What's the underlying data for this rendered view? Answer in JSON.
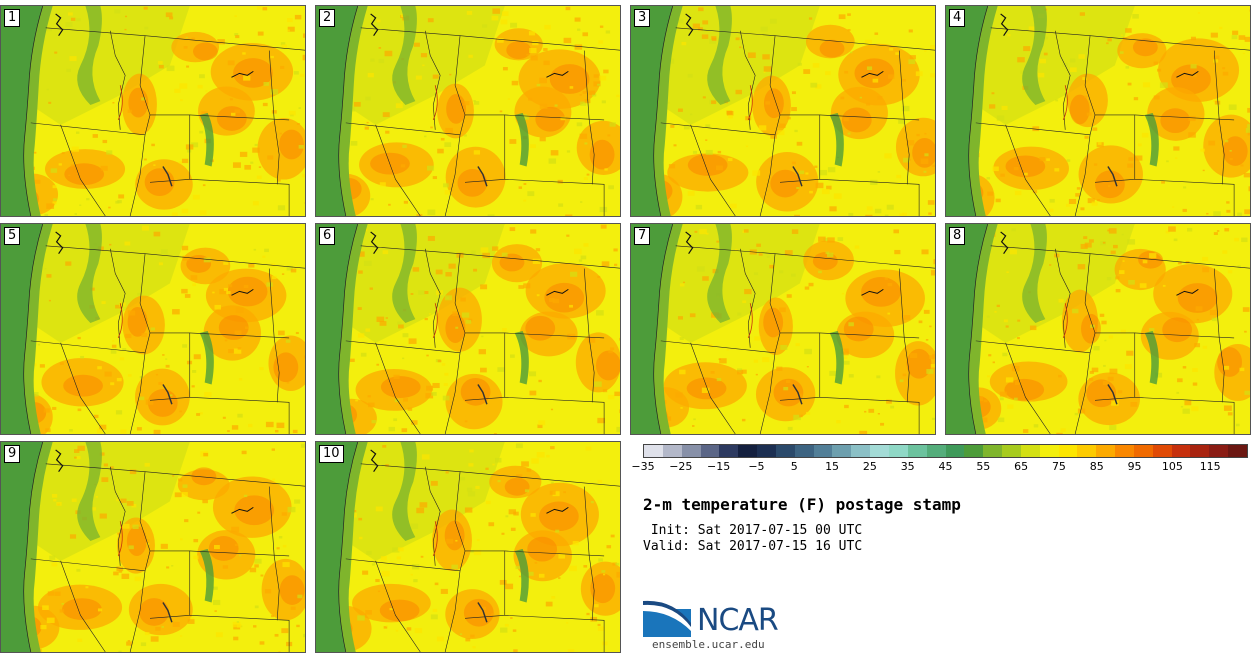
{
  "panels": [
    {
      "label": "1"
    },
    {
      "label": "2"
    },
    {
      "label": "3"
    },
    {
      "label": "4"
    },
    {
      "label": "5"
    },
    {
      "label": "6"
    },
    {
      "label": "7"
    },
    {
      "label": "8"
    },
    {
      "label": "9"
    },
    {
      "label": "10"
    }
  ],
  "colorbar": {
    "colors": [
      "#dfe1ea",
      "#b3b8c9",
      "#8790a8",
      "#5b6687",
      "#2d3a60",
      "#14203f",
      "#1c2f52",
      "#2b4a6b",
      "#3d6482",
      "#527f98",
      "#6d9fae",
      "#8bc0c6",
      "#a3dbd6",
      "#8fd8c6",
      "#6cc29e",
      "#54ad7b",
      "#3f9a5a",
      "#4d9c3a",
      "#7fb52c",
      "#a7cb1e",
      "#d3e014",
      "#f3ef0d",
      "#fce600",
      "#fdcb00",
      "#fcaa00",
      "#f98700",
      "#f06a00",
      "#e04a05",
      "#c6300d",
      "#a8230f",
      "#8a1c14",
      "#6b1712"
    ],
    "tick_labels": [
      "−35",
      "−25",
      "−15",
      "−5",
      "5",
      "15",
      "25",
      "35",
      "45",
      "55",
      "65",
      "75",
      "85",
      "95",
      "105",
      "115"
    ]
  },
  "title": "2-m temperature (F) postage stamp",
  "init_text": " Init: Sat 2017-07-15 00 UTC",
  "valid_text": "Valid: Sat 2017-07-15 16 UTC",
  "logo": {
    "text": "NCAR",
    "url": "ensemble.ucar.edu"
  }
}
